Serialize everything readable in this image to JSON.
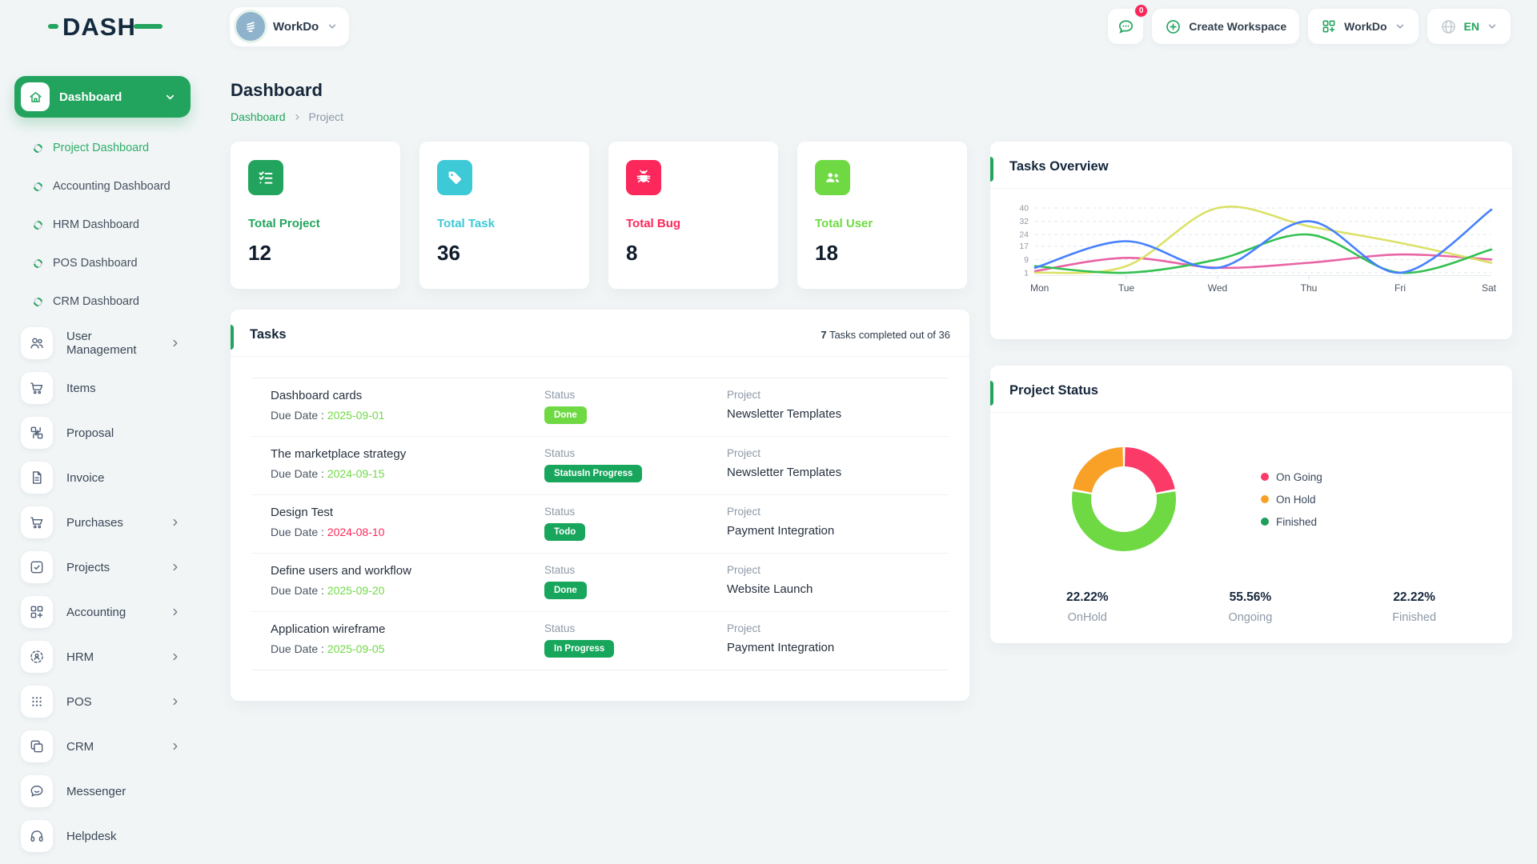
{
  "brand": {
    "name": "DASH"
  },
  "header": {
    "workspace_label": "WorkDo",
    "notifications_badge": "0",
    "create_workspace_label": "Create Workspace",
    "workdo_label": "WorkDo",
    "language": "EN"
  },
  "sidebar": {
    "active_item": "Dashboard",
    "dashboard_subitems": [
      {
        "label": "Project Dashboard",
        "active": true
      },
      {
        "label": "Accounting Dashboard",
        "active": false
      },
      {
        "label": "HRM Dashboard",
        "active": false
      },
      {
        "label": "POS Dashboard",
        "active": false
      },
      {
        "label": "CRM Dashboard",
        "active": false
      }
    ],
    "items": [
      {
        "label": "User Management",
        "icon": "users",
        "chevron": true
      },
      {
        "label": "Items",
        "icon": "cart",
        "chevron": false
      },
      {
        "label": "Proposal",
        "icon": "proposal",
        "chevron": false
      },
      {
        "label": "Invoice",
        "icon": "invoice",
        "chevron": false
      },
      {
        "label": "Purchases",
        "icon": "cart",
        "chevron": true
      },
      {
        "label": "Projects",
        "icon": "check-square",
        "chevron": true
      },
      {
        "label": "Accounting",
        "icon": "grid-plus",
        "chevron": true
      },
      {
        "label": "HRM",
        "icon": "person-target",
        "chevron": true
      },
      {
        "label": "POS",
        "icon": "dots-grid",
        "chevron": true
      },
      {
        "label": "CRM",
        "icon": "copy",
        "chevron": true
      },
      {
        "label": "Messenger",
        "icon": "chat",
        "chevron": false
      },
      {
        "label": "Helpdesk",
        "icon": "headset",
        "chevron": false
      }
    ]
  },
  "page": {
    "title": "Dashboard",
    "breadcrumb_link": "Dashboard",
    "breadcrumb_current": "Project"
  },
  "stats": [
    {
      "label": "Total Project",
      "value": "12",
      "icon": "checklist",
      "color": "#23a45e"
    },
    {
      "label": "Total Task",
      "value": "36",
      "icon": "tag",
      "color": "#3ec9d6"
    },
    {
      "label": "Total Bug",
      "value": "8",
      "icon": "bug",
      "color": "#fc275a"
    },
    {
      "label": "Total User",
      "value": "18",
      "icon": "users-fill",
      "color": "#6fd944"
    }
  ],
  "tasks": {
    "title": "Tasks",
    "summary_strong": "7",
    "summary_rest": " Tasks completed out of 36",
    "status_label": "Status",
    "project_label": "Project",
    "due_prefix": "Due Date : ",
    "rows": [
      {
        "title": "Dashboard cards",
        "due": "2025-09-01",
        "due_color": "#6fd944",
        "status": "Done",
        "status_bg": "#6fd944",
        "project": "Newsletter Templates"
      },
      {
        "title": "The marketplace strategy",
        "due": "2024-09-15",
        "due_color": "#6fd944",
        "status": "StatusIn Progress",
        "status_bg": "#17a65b",
        "project": "Newsletter Templates"
      },
      {
        "title": "Design Test",
        "due": "2024-08-10",
        "due_color": "#fc275a",
        "status": "Todo",
        "status_bg": "#17a65b",
        "project": "Payment Integration"
      },
      {
        "title": "Define users and workflow",
        "due": "2025-09-20",
        "due_color": "#6fd944",
        "status": "Done",
        "status_bg": "#17a65b",
        "project": "Website Launch"
      },
      {
        "title": "Application wireframe",
        "due": "2025-09-05",
        "due_color": "#6fd944",
        "status": "In Progress",
        "status_bg": "#17a65b",
        "project": "Payment Integration"
      }
    ]
  },
  "chart_data": [
    {
      "type": "line",
      "title": "Tasks Overview",
      "x": [
        "Mon",
        "Tue",
        "Wed",
        "Thu",
        "Fri",
        "Sat"
      ],
      "y_ticks": [
        40,
        32,
        24,
        17,
        9,
        1
      ],
      "ylim": [
        0,
        40
      ],
      "grid": "dashed-horizontal",
      "legend": "none",
      "curve": "smooth",
      "series": [
        {
          "name": "series-blue",
          "color": "#4680ff",
          "values": [
            4,
            20,
            4,
            32,
            1,
            39
          ]
        },
        {
          "name": "series-yellow",
          "color": "#dbe167",
          "values": [
            1,
            5,
            40,
            29,
            19,
            7
          ]
        },
        {
          "name": "series-green",
          "color": "#33c151",
          "values": [
            5,
            1,
            9,
            24,
            1,
            15
          ]
        },
        {
          "name": "series-pink",
          "color": "#e963a5",
          "values": [
            2,
            10,
            4,
            7,
            12,
            9
          ]
        }
      ]
    },
    {
      "type": "pie",
      "title": "Project Status",
      "donut": true,
      "legend_position": "right",
      "arcs": [
        {
          "pct": 22.22,
          "color": "#fb3a68"
        },
        {
          "pct": 55.56,
          "color": "#6fd944"
        },
        {
          "pct": 22.22,
          "color": "#f9a127"
        }
      ],
      "legend": [
        {
          "label": "On Going",
          "color": "#fb3a68"
        },
        {
          "label": "On Hold",
          "color": "#f9a127"
        },
        {
          "label": "Finished",
          "color": "#1f9d5b"
        }
      ],
      "stats": [
        {
          "value": "22.22%",
          "label": "OnHold"
        },
        {
          "value": "55.56%",
          "label": "Ongoing"
        },
        {
          "value": "22.22%",
          "label": "Finished"
        }
      ]
    }
  ],
  "colors": {
    "primary_green": "#23a45e",
    "light_green": "#6fd944",
    "cyan": "#3ec9d6",
    "pink": "#fc275a",
    "orange": "#f9a127",
    "page_bg": "#f1f5f6"
  }
}
